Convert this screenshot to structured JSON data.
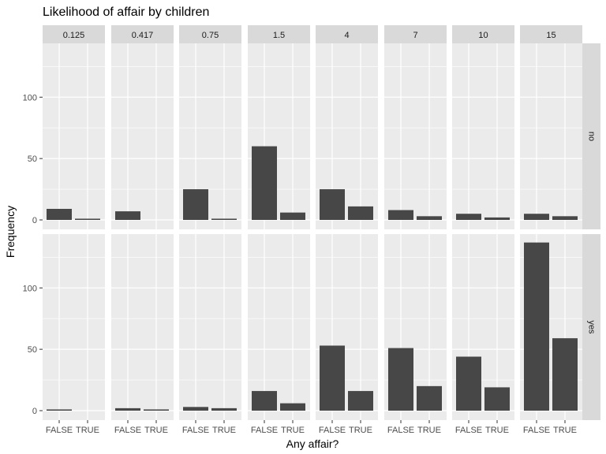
{
  "chart_data": {
    "type": "bar",
    "title": "Likelihood of affair by children",
    "xlabel": "Any affair?",
    "ylabel": "Frequency",
    "categories": [
      "FALSE",
      "TRUE"
    ],
    "column_facets": [
      "0.125",
      "0.417",
      "0.75",
      "1.5",
      "4",
      "7",
      "10",
      "15"
    ],
    "row_facets": [
      "no",
      "yes"
    ],
    "y_ticks": [
      0,
      50,
      100
    ],
    "ylim": [
      0,
      140
    ],
    "grid": true,
    "panels": [
      {
        "row": "no",
        "col": "0.125",
        "values": [
          9,
          1
        ]
      },
      {
        "row": "no",
        "col": "0.417",
        "values": [
          7,
          0
        ]
      },
      {
        "row": "no",
        "col": "0.75",
        "values": [
          25,
          1
        ]
      },
      {
        "row": "no",
        "col": "1.5",
        "values": [
          60,
          6
        ]
      },
      {
        "row": "no",
        "col": "4",
        "values": [
          25,
          11
        ]
      },
      {
        "row": "no",
        "col": "7",
        "values": [
          8,
          3
        ]
      },
      {
        "row": "no",
        "col": "10",
        "values": [
          5,
          2
        ]
      },
      {
        "row": "no",
        "col": "15",
        "values": [
          5,
          3
        ]
      },
      {
        "row": "yes",
        "col": "0.125",
        "values": [
          1,
          0
        ]
      },
      {
        "row": "yes",
        "col": "0.417",
        "values": [
          2,
          1
        ]
      },
      {
        "row": "yes",
        "col": "0.75",
        "values": [
          3,
          2
        ]
      },
      {
        "row": "yes",
        "col": "1.5",
        "values": [
          16,
          6
        ]
      },
      {
        "row": "yes",
        "col": "4",
        "values": [
          53,
          16
        ]
      },
      {
        "row": "yes",
        "col": "7",
        "values": [
          51,
          20
        ]
      },
      {
        "row": "yes",
        "col": "10",
        "values": [
          44,
          19
        ]
      },
      {
        "row": "yes",
        "col": "15",
        "values": [
          137,
          59
        ]
      }
    ],
    "colors": {
      "bar": "#474747",
      "panel": "#ebebeb",
      "strip": "#d9d9d9",
      "grid": "#ffffff",
      "tick_text": "#4d4d4d"
    }
  }
}
